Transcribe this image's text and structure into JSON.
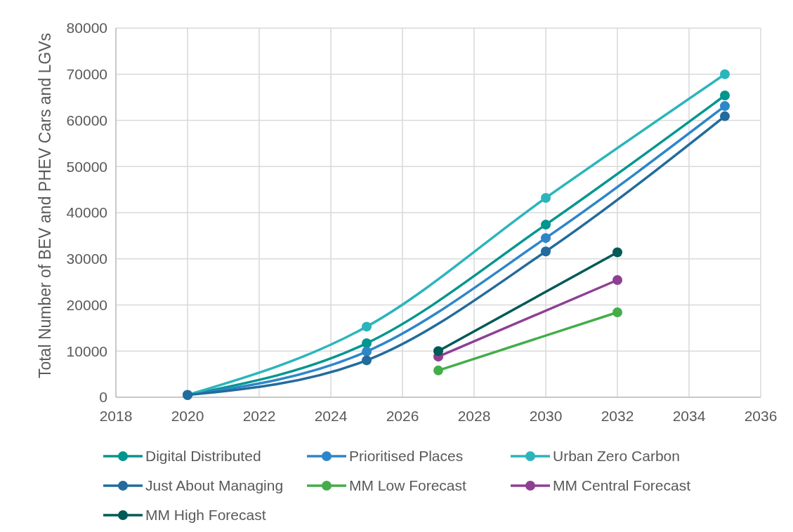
{
  "chart_data": {
    "type": "line",
    "ylabel": "Total Number of BEV and PHEV Cars and LGVs",
    "xlim": [
      2018,
      2036
    ],
    "xticks": [
      2018,
      2020,
      2022,
      2024,
      2026,
      2028,
      2030,
      2032,
      2034,
      2036
    ],
    "ylim": [
      0,
      80000
    ],
    "yticks": [
      0,
      10000,
      20000,
      30000,
      40000,
      50000,
      60000,
      70000,
      80000
    ],
    "grid": true,
    "legend": "bottom",
    "marker": "circle",
    "line_style": "solid",
    "series": [
      {
        "name": "Digital Distributed",
        "color": "#00968f",
        "x": [
          2020,
          2025,
          2030,
          2035
        ],
        "values": [
          500,
          11700,
          37400,
          65400
        ]
      },
      {
        "name": "Prioritised Places",
        "color": "#2e86c8",
        "x": [
          2020,
          2025,
          2030,
          2035
        ],
        "values": [
          500,
          9900,
          34500,
          63100
        ]
      },
      {
        "name": "Urban Zero Carbon",
        "color": "#2bb5bb",
        "x": [
          2020,
          2025,
          2030,
          2035
        ],
        "values": [
          500,
          15300,
          43200,
          70000
        ]
      },
      {
        "name": "Just About Managing",
        "color": "#236b9c",
        "x": [
          2020,
          2025,
          2030,
          2035
        ],
        "values": [
          500,
          8000,
          31600,
          60900
        ]
      },
      {
        "name": "MM Low Forecast",
        "color": "#44ad4a",
        "x": [
          2027,
          2032
        ],
        "values": [
          5800,
          18400
        ]
      },
      {
        "name": "MM Central Forecast",
        "color": "#8e3f94",
        "x": [
          2027,
          2032
        ],
        "values": [
          8800,
          25400
        ]
      },
      {
        "name": "MM High Forecast",
        "color": "#005a57",
        "x": [
          2027,
          2032
        ],
        "values": [
          10000,
          31400
        ]
      }
    ]
  }
}
